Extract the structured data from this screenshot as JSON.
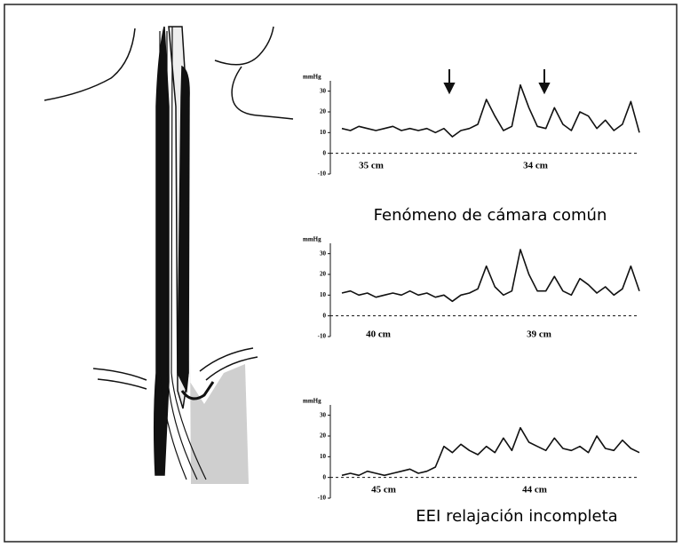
{
  "chart_data": [
    {
      "type": "line",
      "ylabel": "mmHg",
      "ylim": [
        -10,
        35
      ],
      "yticks": [
        30,
        20,
        10,
        0,
        -10
      ],
      "annotations": [
        "35 cm",
        "34 cm"
      ],
      "caption": "Fenómeno de cámara común",
      "series": [
        {
          "color": "#111111",
          "values": [
            12,
            11,
            13,
            12,
            11,
            12,
            13,
            11,
            12,
            11,
            12,
            10,
            12,
            8,
            11,
            12,
            14,
            26,
            18,
            11,
            13,
            33,
            22,
            13,
            12,
            22,
            14,
            11,
            20,
            18,
            12,
            16,
            11,
            14,
            25,
            10
          ]
        }
      ]
    },
    {
      "type": "line",
      "ylabel": "mmHg",
      "ylim": [
        -10,
        35
      ],
      "yticks": [
        30,
        20,
        10,
        0,
        -10
      ],
      "annotations": [
        "40 cm",
        "39 cm"
      ],
      "series": [
        {
          "color": "#111111",
          "values": [
            11,
            12,
            10,
            11,
            9,
            10,
            11,
            10,
            12,
            10,
            11,
            9,
            10,
            7,
            10,
            11,
            13,
            24,
            14,
            10,
            12,
            32,
            20,
            12,
            12,
            19,
            12,
            10,
            18,
            15,
            11,
            14,
            10,
            13,
            24,
            12
          ]
        }
      ]
    },
    {
      "type": "line",
      "ylabel": "mmHg",
      "ylim": [
        -10,
        35
      ],
      "yticks": [
        30,
        20,
        10,
        0,
        -10
      ],
      "annotations": [
        "45 cm",
        "44 cm"
      ],
      "caption": "EEI relajación incompleta",
      "series": [
        {
          "color": "#111111",
          "values": [
            1,
            2,
            1,
            3,
            2,
            1,
            2,
            3,
            4,
            2,
            3,
            5,
            15,
            12,
            16,
            13,
            11,
            15,
            12,
            19,
            13,
            24,
            17,
            15,
            13,
            19,
            14,
            13,
            15,
            12,
            20,
            14,
            13,
            18,
            14,
            12
          ]
        }
      ]
    }
  ]
}
